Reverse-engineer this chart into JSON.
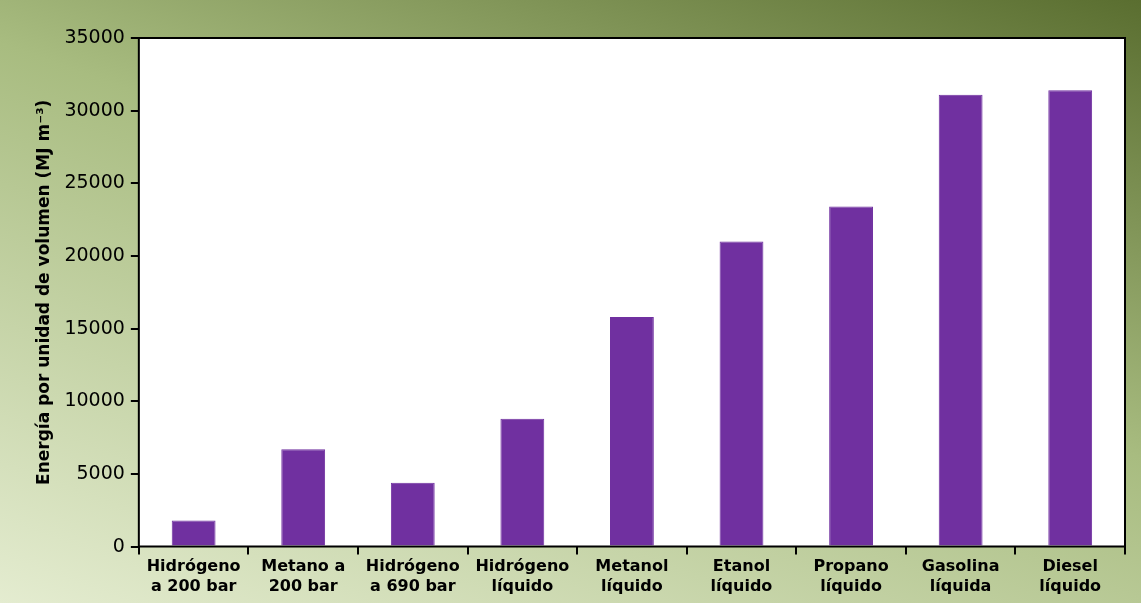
{
  "chart_data": {
    "type": "bar",
    "ylabel": "Energía por unidad de volumen (MJ m⁻³)",
    "categories": [
      "Hidrógeno a 200 bar",
      "Metano a 200 bar",
      "Hidrógeno a 690 bar",
      "Hidrógeno líquido",
      "Metanol líquido",
      "Etanol líquido",
      "Propano líquido",
      "Gasolina líquida",
      "Diesel líquido"
    ],
    "values": [
      1800,
      6700,
      4400,
      8800,
      15800,
      21000,
      23400,
      31100,
      31400
    ],
    "color": "#7030a0",
    "ylim": [
      0,
      35000
    ],
    "yticks": [
      0,
      5000,
      10000,
      15000,
      20000,
      25000,
      30000,
      35000
    ]
  }
}
